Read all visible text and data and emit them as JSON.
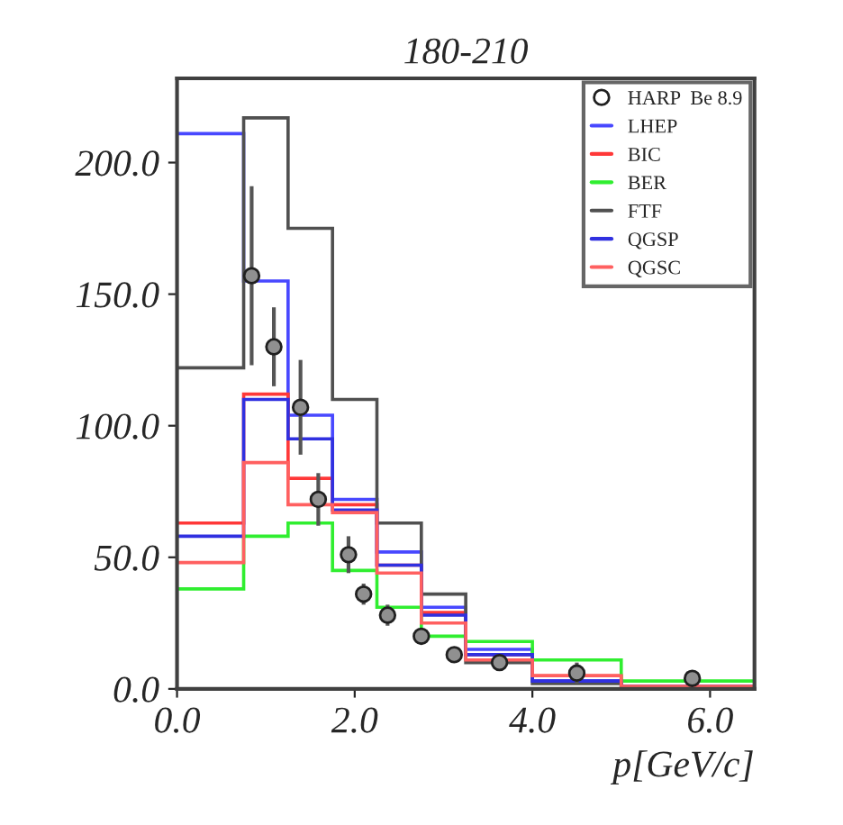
{
  "chart_data": {
    "type": "histogram",
    "title": "180-210",
    "xlabel": "p[GeV/c]",
    "bins": [
      0,
      0.75,
      1.25,
      1.75,
      2.25,
      2.75,
      3.25,
      4,
      5,
      6.5
    ],
    "series": [
      {
        "name": "HARP  Be 8.9",
        "type": "scatter",
        "color": "#202020",
        "marker": "circle",
        "x": [
          0.84,
          1.09,
          1.39,
          1.59,
          1.93,
          2.1,
          2.37,
          2.75,
          3.12,
          3.63,
          4.5,
          5.8
        ],
        "values": [
          157,
          130,
          107,
          72,
          51,
          36,
          28,
          20,
          13,
          10,
          6,
          4
        ],
        "errors": [
          34,
          15,
          18,
          10,
          7,
          4,
          4,
          3,
          2,
          2,
          4,
          3
        ]
      },
      {
        "name": "LHEP",
        "color": "#4848ff",
        "values": [
          211,
          155,
          104,
          72,
          52,
          31,
          15,
          3,
          1
        ]
      },
      {
        "name": "BIC",
        "color": "#ff3838",
        "values": [
          63,
          112,
          80,
          70,
          47,
          29,
          13,
          5,
          1
        ]
      },
      {
        "name": "BER",
        "color": "#30ee30",
        "values": [
          38,
          58,
          63,
          45,
          31,
          20,
          18,
          11,
          3
        ]
      },
      {
        "name": "FTF",
        "color": "#505050",
        "values": [
          122,
          217,
          175,
          110,
          63,
          36,
          10,
          2,
          1
        ]
      },
      {
        "name": "QGSP",
        "color": "#3030e0",
        "values": [
          58,
          110,
          95,
          68,
          47,
          28,
          13,
          3,
          1
        ]
      },
      {
        "name": "QGSC",
        "color": "#ff6060",
        "values": [
          48,
          86,
          70,
          67,
          44,
          25,
          11,
          5,
          1
        ]
      }
    ],
    "xlim": [
      0,
      6.5
    ],
    "ylim": [
      0,
      232
    ],
    "xticks": [
      {
        "value": 0,
        "label": "0.0"
      },
      {
        "value": 2,
        "label": "2.0"
      },
      {
        "value": 4,
        "label": "4.0"
      },
      {
        "value": 6,
        "label": "6.0"
      }
    ],
    "yticks": [
      {
        "value": 0,
        "label": "0.0"
      },
      {
        "value": 50,
        "label": "50.0"
      },
      {
        "value": 100,
        "label": "100.0"
      },
      {
        "value": 150,
        "label": "150.0"
      },
      {
        "value": 200,
        "label": "200.0"
      }
    ],
    "grid": false,
    "legend": "top right"
  }
}
